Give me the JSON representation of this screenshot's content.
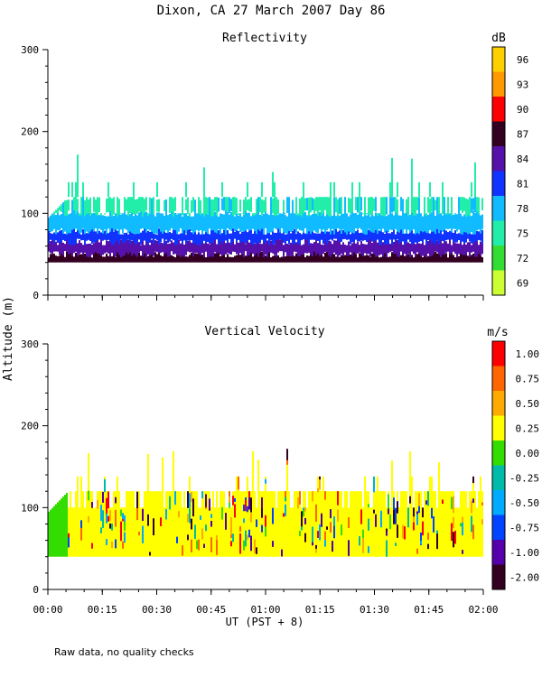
{
  "figure": {
    "title": "Dixon, CA 27 March 2007  Day  86",
    "ylabel": "Altitude (m)",
    "xlabel": "UT  (PST + 8)",
    "footnote": "Raw data, no quality checks",
    "xticks": [
      "00:00",
      "00:15",
      "00:30",
      "00:45",
      "01:00",
      "01:15",
      "01:30",
      "01:45",
      "02:00"
    ],
    "yticks": [
      "0",
      "100",
      "200",
      "300"
    ]
  },
  "chart_data": [
    {
      "type": "heatmap",
      "title": "Reflectivity",
      "unit": "dB",
      "x_range": [
        "00:00",
        "02:00"
      ],
      "ylim": [
        0,
        300
      ],
      "colorbar_ticks": [
        "69",
        "72",
        "75",
        "78",
        "81",
        "84",
        "87",
        "90",
        "93",
        "96"
      ],
      "colorbar_colors": [
        "#ccff33",
        "#33dd33",
        "#22eeaa",
        "#11bbff",
        "#1133ff",
        "#5511aa",
        "#330022",
        "#ff0000",
        "#ff9900",
        "#ffd000"
      ],
      "profile": {
        "base_altitude": 40,
        "typical_top": 120,
        "max_top": 180
      },
      "layers": [
        {
          "from": 40,
          "to": 50,
          "value_db": 87
        },
        {
          "from": 50,
          "to": 65,
          "value_db": 84
        },
        {
          "from": 65,
          "to": 78,
          "value_db": 81
        },
        {
          "from": 78,
          "to": 100,
          "value_db": 78
        },
        {
          "from": 100,
          "to": 120,
          "value_db": 75
        }
      ]
    },
    {
      "type": "heatmap",
      "title": "Vertical Velocity",
      "unit": "m/s",
      "x_range": [
        "00:00",
        "02:00"
      ],
      "ylim": [
        0,
        300
      ],
      "colorbar_ticks": [
        "1.00",
        "0.75",
        "0.50",
        "0.25",
        "0.00",
        "-0.25",
        "-0.50",
        "-0.75",
        "-1.00",
        "-2.00"
      ],
      "colorbar_colors": [
        "#ff0000",
        "#ff6600",
        "#ffaa00",
        "#ffff00",
        "#33dd00",
        "#00bbaa",
        "#00aaff",
        "#0044ff",
        "#5500aa",
        "#330022"
      ],
      "profile": {
        "base_altitude": 40,
        "typical_top": 120,
        "max_top": 175
      },
      "dominant_value_ms": 0.25
    }
  ]
}
